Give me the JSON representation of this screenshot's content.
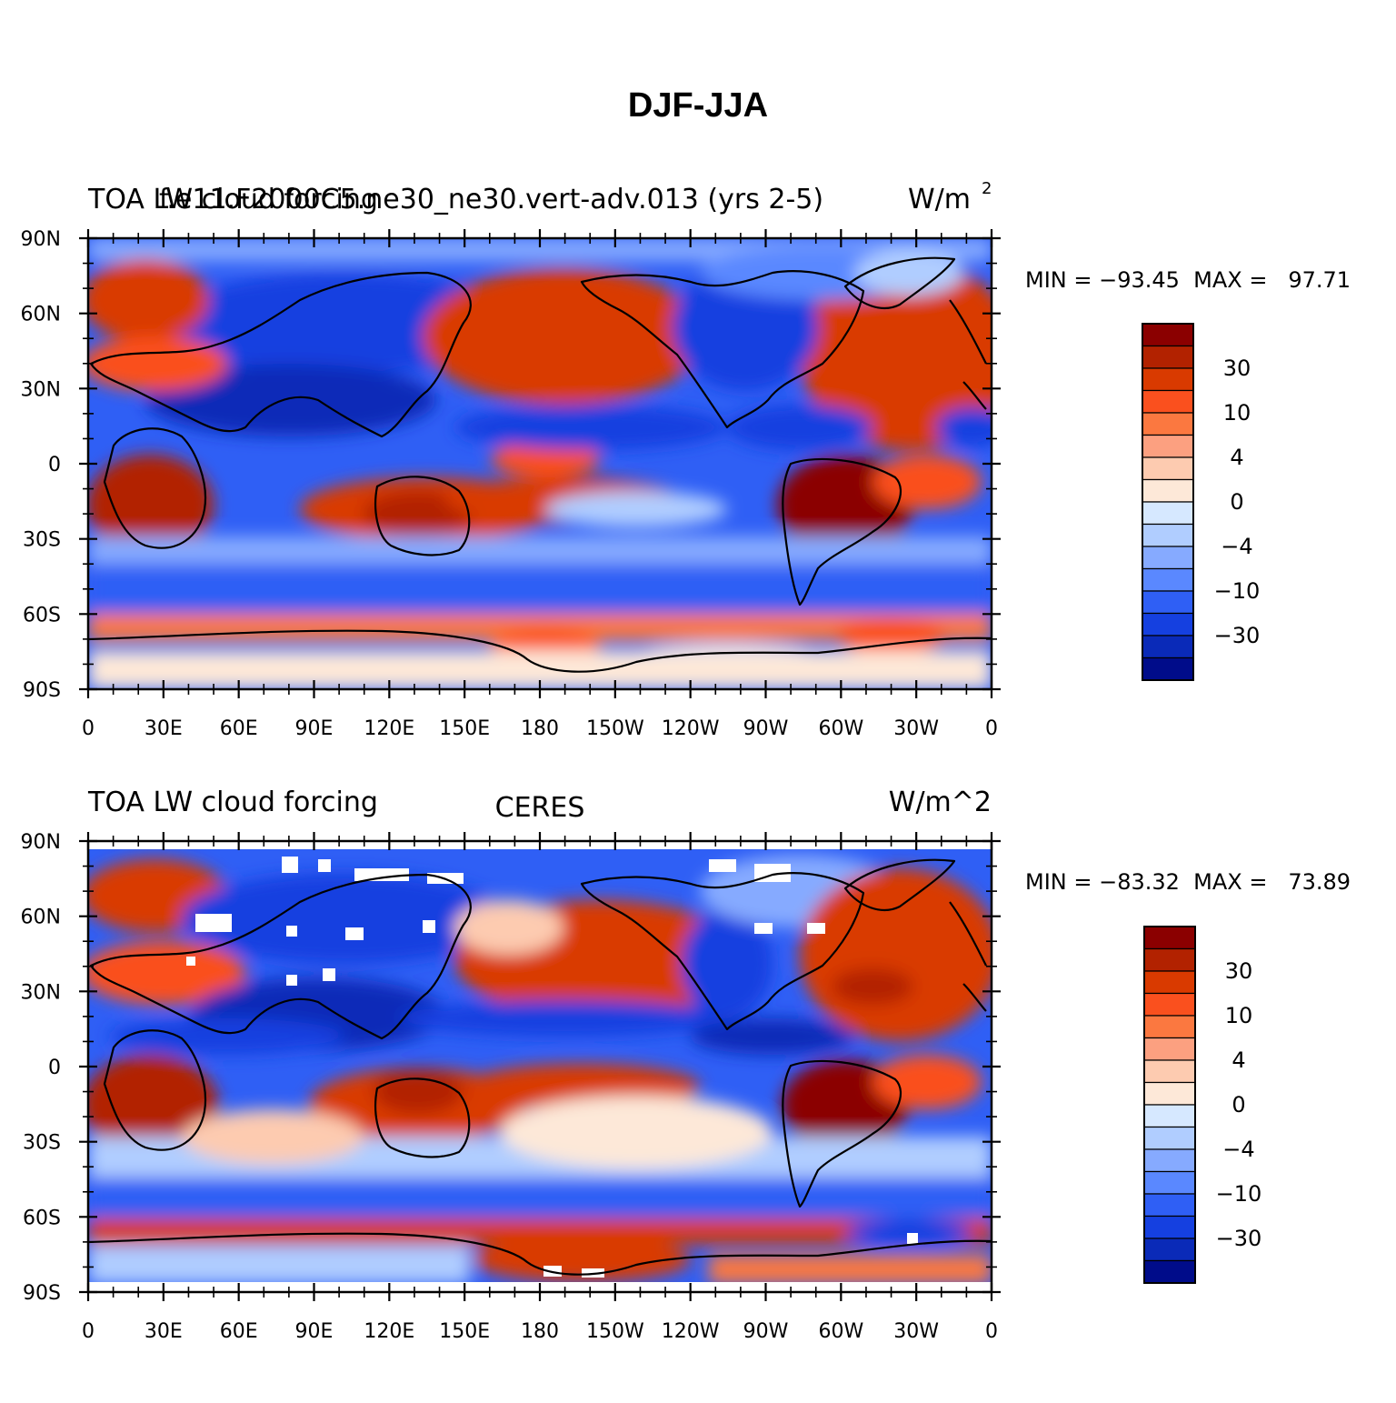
{
  "figure": {
    "title": "DJF-JJA"
  },
  "axes": {
    "lat_ticks": [
      "90N",
      "60N",
      "30N",
      "0",
      "30S",
      "60S",
      "90S"
    ],
    "lon_ticks": [
      "0",
      "30E",
      "60E",
      "90E",
      "120E",
      "150E",
      "180",
      "150W",
      "120W",
      "90W",
      "60W",
      "30W",
      "0"
    ]
  },
  "panels": [
    {
      "left_title": "TOA LW cloud forcing",
      "center_title": "f.e11.F2000C5.ne30_ne30.vert-adv.013 (yrs 2-5)",
      "right_title": "W/m",
      "right_title_sup": "2",
      "stats": "MIN = −93.45  MAX =   97.71"
    },
    {
      "left_title": "TOA LW cloud forcing",
      "center_title": "CERES",
      "right_title": "W/m^2",
      "right_title_sup": "",
      "stats": "MIN = −83.32  MAX =   73.89"
    }
  ],
  "colorbar": {
    "colors": [
      "#8b0000",
      "#b22200",
      "#d93a00",
      "#fa501e",
      "#fb7840",
      "#fca080",
      "#fdcbb0",
      "#fde8d8",
      "#d6e8ff",
      "#b0cdff",
      "#86aaff",
      "#5a88ff",
      "#2f5ff5",
      "#1540e0",
      "#0a2ab8",
      "#000c8a"
    ],
    "labels": [
      "30",
      "10",
      "4",
      "0",
      "−4",
      "−10",
      "−30"
    ]
  }
}
